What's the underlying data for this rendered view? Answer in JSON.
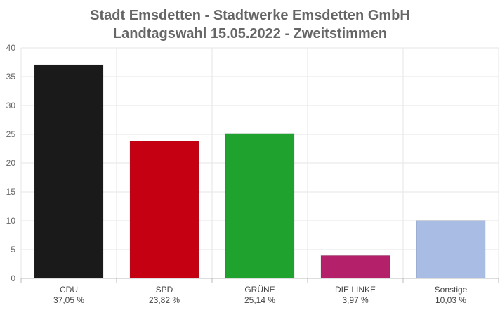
{
  "chart_data": {
    "type": "bar",
    "title": "Stadt Emsdetten - Stadtwerke Emsdetten GmbH",
    "subtitle": "Landtagswahl 15.05.2022  - Zweitstimmen",
    "categories": [
      "CDU",
      "SPD",
      "GRÜNE",
      "DIE LINKE",
      "Sonstige"
    ],
    "value_labels": [
      "37,05 %",
      "23,82 %",
      "25,14 %",
      "3,97 %",
      "10,03 %"
    ],
    "values": [
      37.05,
      23.82,
      25.14,
      3.97,
      10.03
    ],
    "colors": [
      "#1a1a1a",
      "#c40012",
      "#1fa22e",
      "#b5206a",
      "#a9bce3"
    ],
    "ylim": [
      0,
      40
    ],
    "yticks": [
      0,
      5,
      10,
      15,
      20,
      25,
      30,
      35,
      40
    ],
    "grid": true
  }
}
